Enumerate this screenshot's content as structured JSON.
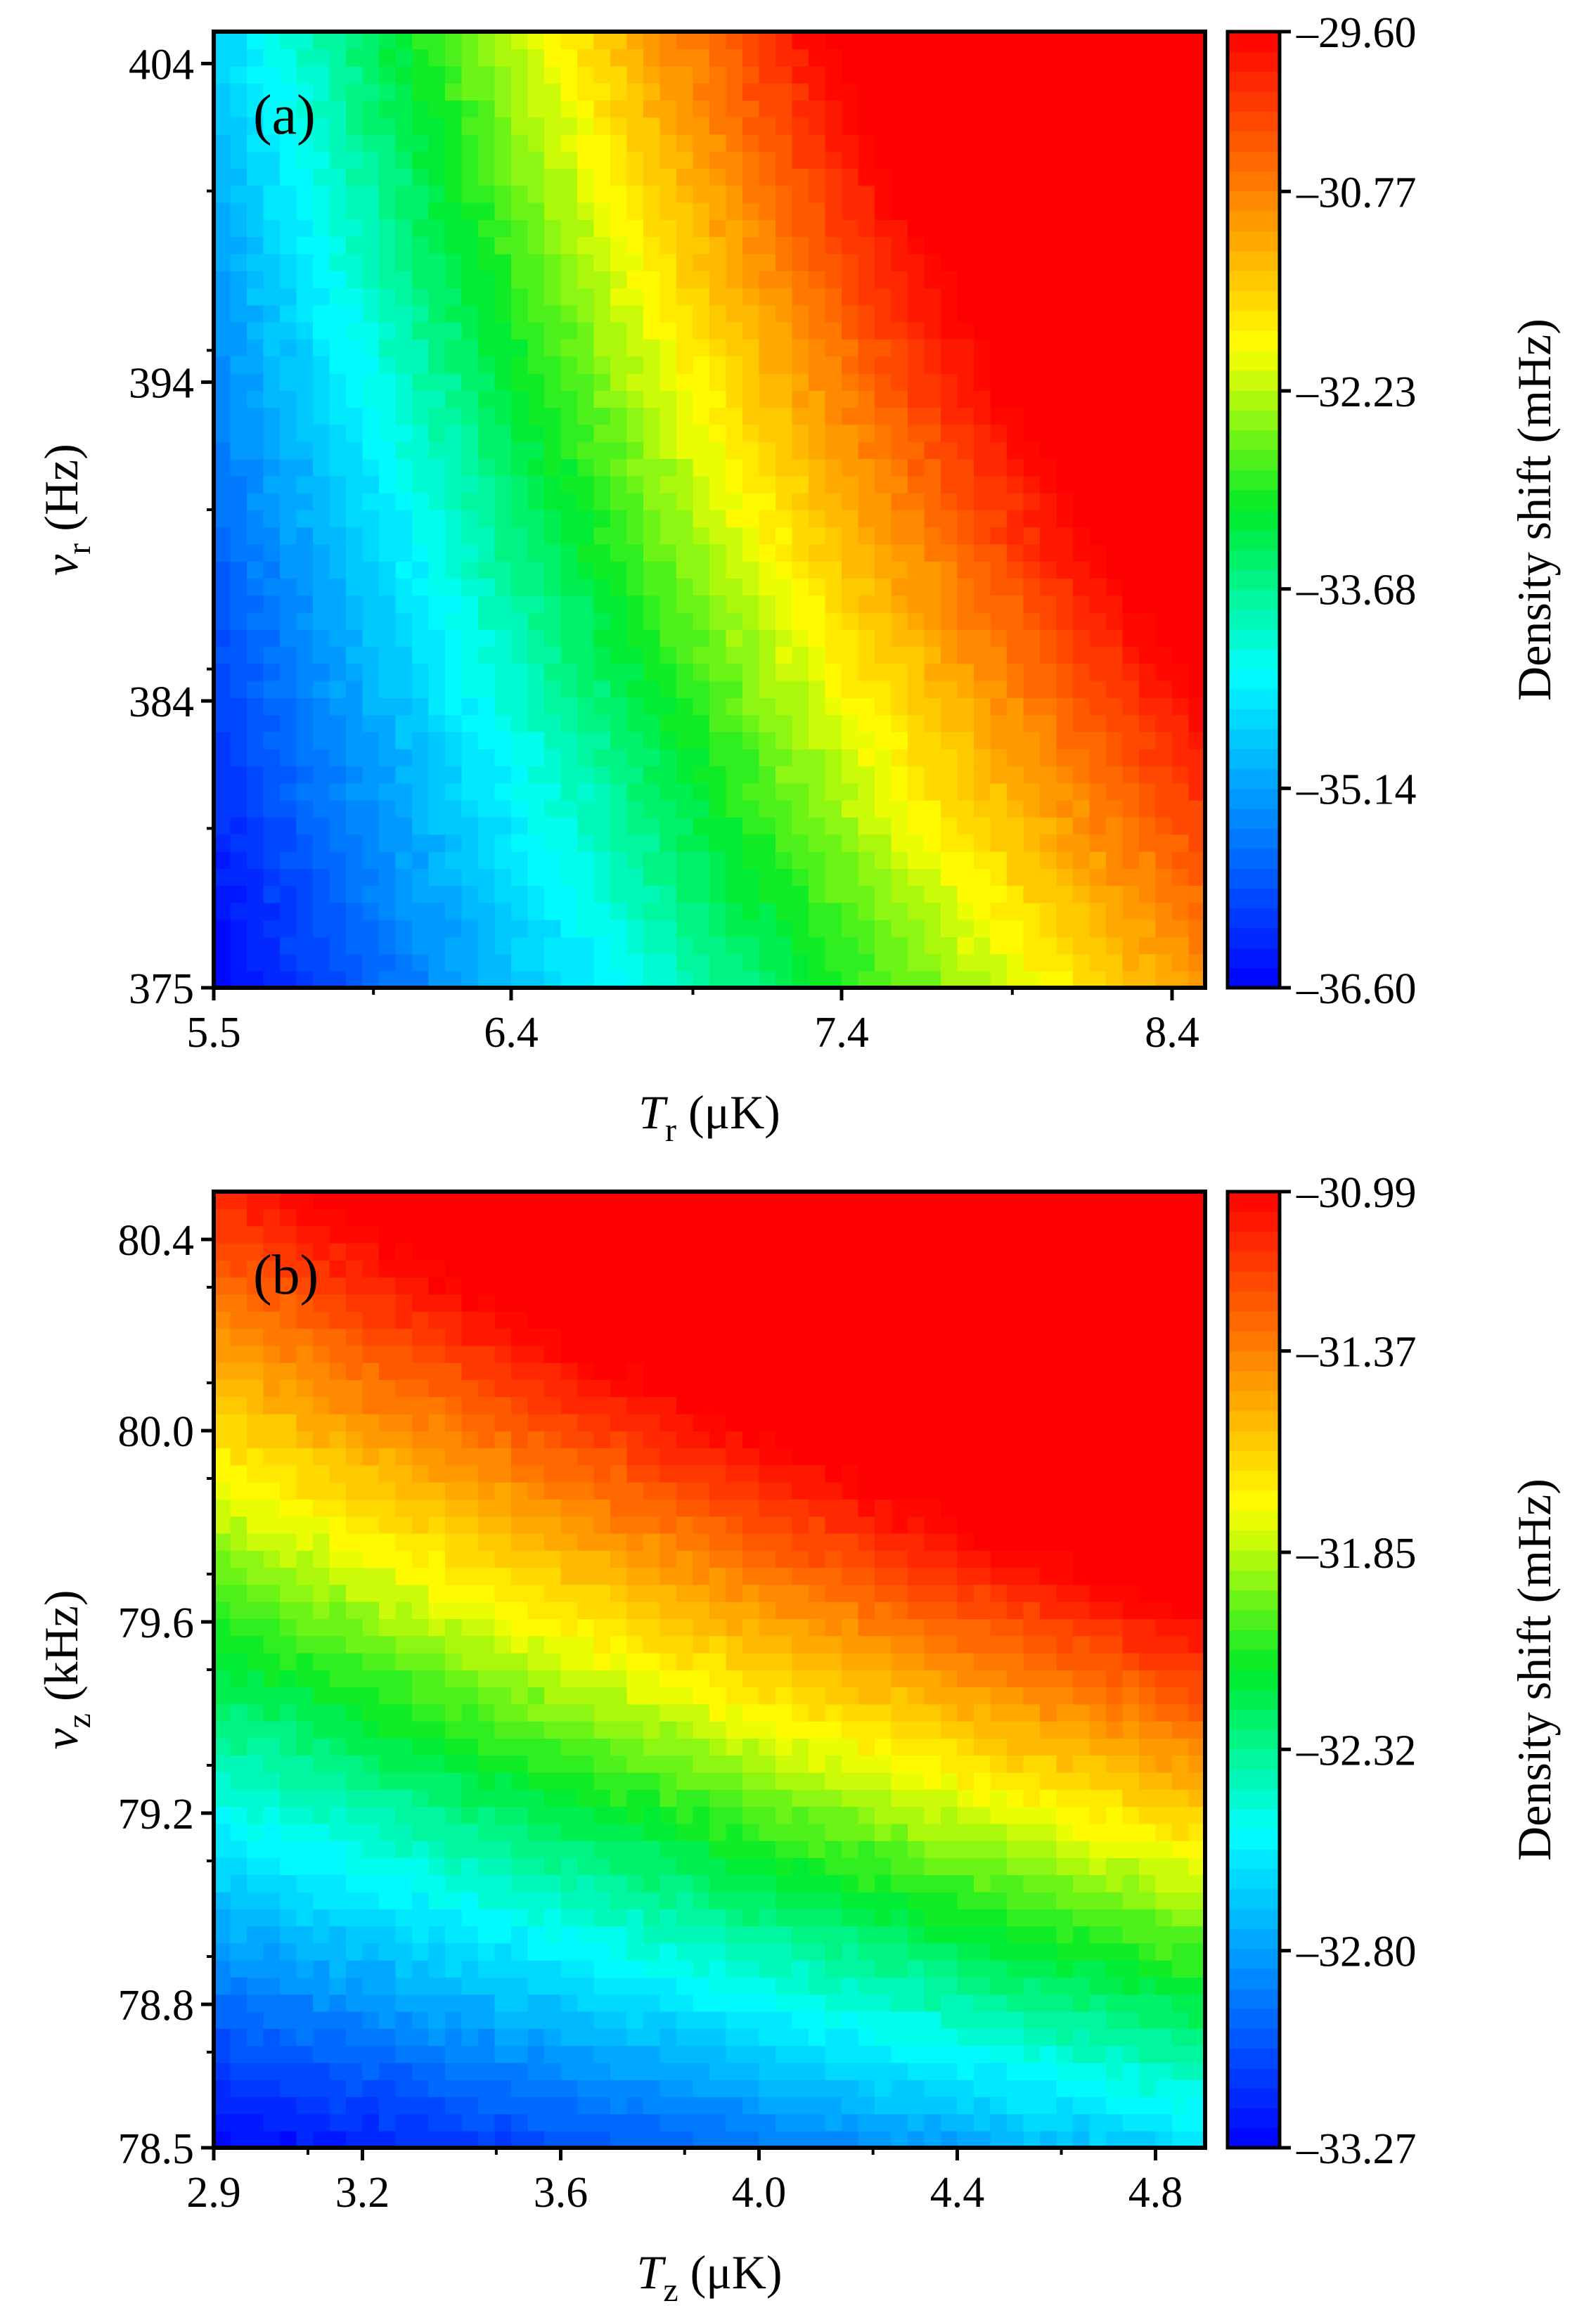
{
  "chart_data": [
    {
      "type": "heatmap",
      "panel_label": "(a)",
      "xlabel": {
        "main": "T",
        "sub": "r",
        "unit": " (μK)"
      },
      "ylabel": {
        "main": "v",
        "sub": "r",
        "unit": " (Hz)"
      },
      "x_range": [
        5.5,
        8.5
      ],
      "y_range": [
        375,
        405
      ],
      "x_ticks": [
        5.5,
        6.4,
        7.4,
        8.4
      ],
      "x_tick_labels": [
        "5.5",
        "6.4",
        "7.4",
        "8.4"
      ],
      "y_ticks": [
        375,
        384,
        394,
        404
      ],
      "y_tick_labels": [
        "375",
        "384",
        "394",
        "404"
      ],
      "colorbar": {
        "title": "Density shift (mHz)",
        "min": -36.6,
        "max": -29.6,
        "ticks": [
          -36.6,
          -35.14,
          -33.68,
          -32.23,
          -30.77,
          -29.6
        ],
        "tick_labels": [
          "–36.60",
          "–35.14",
          "–33.68",
          "–32.23",
          "–30.77",
          "–29.60"
        ]
      },
      "model": {
        "c0": -36.6,
        "cx": 2.3,
        "cy": 0.063,
        "q": 0.45,
        "xc": 5.5,
        "yc": 375,
        "ny_off": 389
      }
    },
    {
      "type": "heatmap",
      "panel_label": "(b)",
      "xlabel": {
        "main": "T",
        "sub": "z",
        "unit": " (μK)"
      },
      "ylabel": {
        "main": "v",
        "sub": "z",
        "unit": " (kHz)"
      },
      "x_range": [
        2.9,
        4.9
      ],
      "y_range": [
        78.5,
        80.5
      ],
      "x_ticks": [
        2.9,
        3.2,
        3.6,
        4.0,
        4.4,
        4.8
      ],
      "x_tick_labels": [
        "2.9",
        "3.2",
        "3.6",
        "4.0",
        "4.4",
        "4.8"
      ],
      "y_ticks": [
        78.5,
        78.8,
        79.2,
        79.6,
        80.0,
        80.4
      ],
      "y_tick_labels": [
        "78.5",
        "78.8",
        "79.2",
        "79.6",
        "80.0",
        "80.4"
      ],
      "colorbar": {
        "title": "Density shift (mHz)",
        "min": -33.27,
        "max": -30.99,
        "ticks": [
          -33.27,
          -32.8,
          -32.32,
          -31.85,
          -31.37,
          -30.99
        ],
        "tick_labels": [
          "–33.27",
          "–32.80",
          "–32.32",
          "–31.85",
          "–31.37",
          "–30.99"
        ]
      },
      "model": {
        "c0": -33.27,
        "cx": 0.52,
        "cy": 1.08,
        "q": 0.2,
        "xc": 2.9,
        "yc": 78.5,
        "ny_off": 79.5
      }
    }
  ]
}
